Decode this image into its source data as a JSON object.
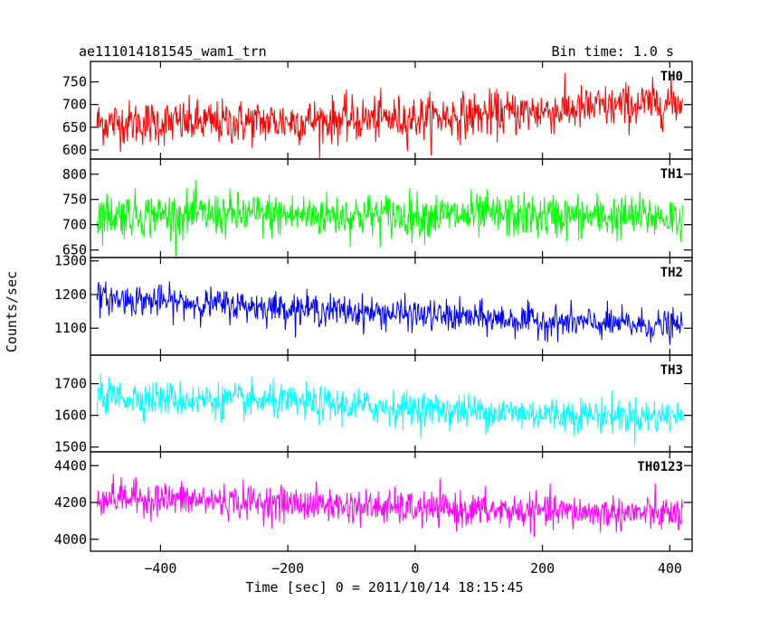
{
  "header": {
    "title": "ae111014181545_wam1_trn",
    "bin_time": "Bin time: 1.0 s"
  },
  "chart_data": {
    "type": "line",
    "xlabel": "Time [sec] 0 = 2011/10/14 18:15:45",
    "ylabel": "Counts/sec",
    "xlim": [
      -510,
      435
    ],
    "x_ticks": [
      "−400",
      "−200",
      "0",
      "200",
      "400"
    ],
    "x_tick_values": [
      -400,
      -200,
      0,
      200,
      400
    ],
    "data_x_range": [
      -500,
      420
    ],
    "bin_seconds": 1.0,
    "grid": false,
    "panels": [
      {
        "name": "TH0",
        "color": "#ff0000",
        "ylim": [
          580,
          795
        ],
        "y_ticks": [
          600,
          650,
          700,
          750
        ],
        "trend": [
          [
            -500,
            660
          ],
          [
            -300,
            660
          ],
          [
            0,
            670
          ],
          [
            200,
            685
          ],
          [
            420,
            705
          ]
        ],
        "scatter": 45
      },
      {
        "name": "TH1",
        "color": "#00ff00",
        "ylim": [
          635,
          830
        ],
        "y_ticks": [
          650,
          700,
          750,
          800
        ],
        "trend": [
          [
            -500,
            720
          ],
          [
            0,
            718
          ],
          [
            420,
            715
          ]
        ],
        "scatter": 40
      },
      {
        "name": "TH2",
        "color": "#0000ff",
        "ylim": [
          1020,
          1310
        ],
        "y_ticks": [
          1100,
          1200,
          1300
        ],
        "trend": [
          [
            -500,
            1190
          ],
          [
            -200,
            1160
          ],
          [
            0,
            1140
          ],
          [
            200,
            1120
          ],
          [
            420,
            1105
          ]
        ],
        "scatter": 42
      },
      {
        "name": "TH3",
        "color": "#00ffff",
        "ylim": [
          1485,
          1790
        ],
        "y_ticks": [
          1500,
          1600,
          1700
        ],
        "trend": [
          [
            -500,
            1660
          ],
          [
            -200,
            1640
          ],
          [
            0,
            1620
          ],
          [
            200,
            1605
          ],
          [
            420,
            1595
          ]
        ],
        "scatter": 50
      },
      {
        "name": "TH0123",
        "color": "#ff00ff",
        "ylim": [
          3935,
          4475
        ],
        "y_ticks": [
          4000,
          4200,
          4400
        ],
        "trend": [
          [
            -500,
            4230
          ],
          [
            -200,
            4195
          ],
          [
            0,
            4165
          ],
          [
            200,
            4150
          ],
          [
            420,
            4135
          ]
        ],
        "scatter": 85
      }
    ]
  }
}
